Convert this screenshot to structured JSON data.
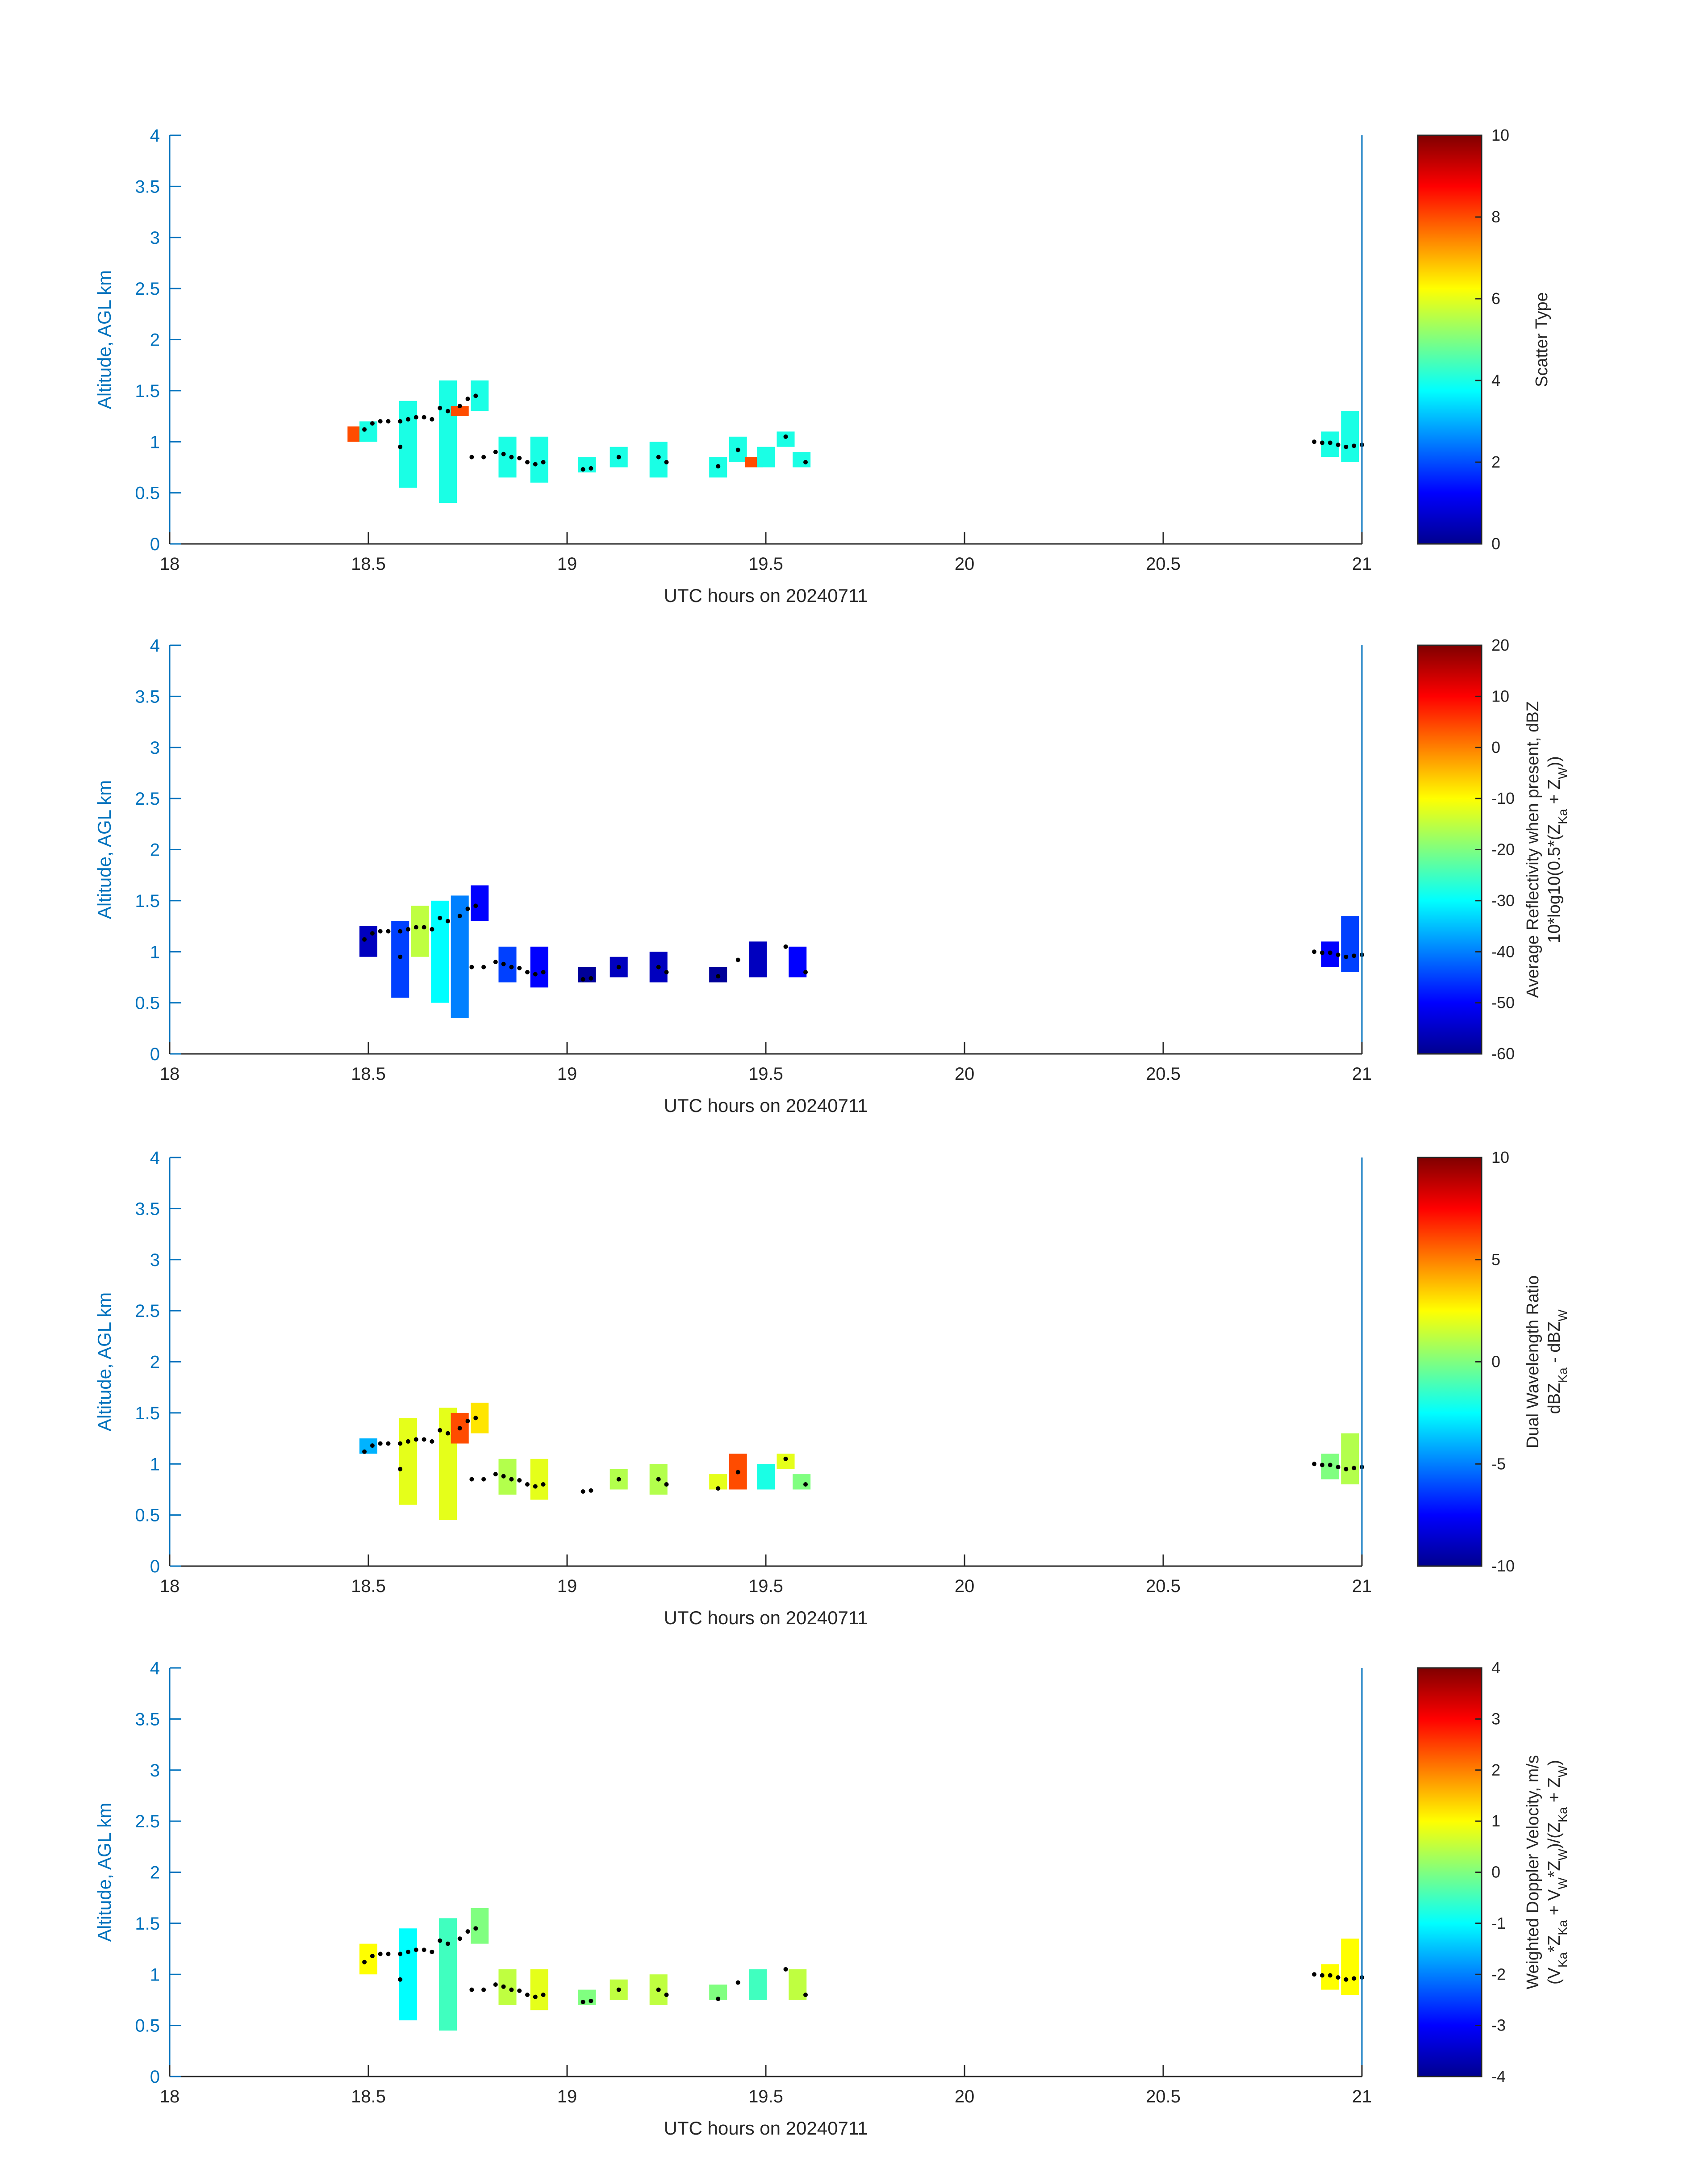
{
  "colors": {
    "axis_left": "#0072BD",
    "axis_text": "#262626",
    "cell_edge": "#000000",
    "jet": [
      "#00008F",
      "#0000FF",
      "#00FFFF",
      "#FFFF00",
      "#FF0000",
      "#800000"
    ]
  },
  "chart_data": [
    {
      "type": "heatmap",
      "title": "",
      "xlabel": "UTC hours on 20240711",
      "ylabel": "Altitude, AGL km",
      "xlim": [
        18,
        21
      ],
      "ylim": [
        0,
        4
      ],
      "xticks": [
        "18",
        "18.5",
        "19",
        "19.5",
        "20",
        "20.5",
        "21"
      ],
      "yticks": [
        "0",
        "0.5",
        "1",
        "1.5",
        "2",
        "2.5",
        "3",
        "3.5",
        "4"
      ],
      "colorbar": {
        "label": [
          "Scatter Type"
        ],
        "clim": [
          0,
          10
        ],
        "ticks": [
          "0",
          "2",
          "4",
          "6",
          "8",
          "10"
        ]
      },
      "grid": false,
      "cells": [
        {
          "x": 18.47,
          "y_bottom": 1.0,
          "y_top": 1.15,
          "value": 8
        },
        {
          "x": 18.5,
          "y_bottom": 1.0,
          "y_top": 1.2,
          "value": 4
        },
        {
          "x": 18.6,
          "y_bottom": 0.55,
          "y_top": 1.4,
          "value": 4
        },
        {
          "x": 18.7,
          "y_bottom": 0.4,
          "y_top": 1.6,
          "value": 4
        },
        {
          "x": 18.73,
          "y_bottom": 1.25,
          "y_top": 1.35,
          "value": 8
        },
        {
          "x": 18.78,
          "y_bottom": 1.3,
          "y_top": 1.6,
          "value": 4
        },
        {
          "x": 18.85,
          "y_bottom": 0.65,
          "y_top": 1.05,
          "value": 4
        },
        {
          "x": 18.93,
          "y_bottom": 0.6,
          "y_top": 1.05,
          "value": 4
        },
        {
          "x": 19.05,
          "y_bottom": 0.7,
          "y_top": 0.85,
          "value": 4
        },
        {
          "x": 19.13,
          "y_bottom": 0.75,
          "y_top": 0.95,
          "value": 4
        },
        {
          "x": 19.23,
          "y_bottom": 0.65,
          "y_top": 1.0,
          "value": 4
        },
        {
          "x": 19.38,
          "y_bottom": 0.65,
          "y_top": 0.85,
          "value": 4
        },
        {
          "x": 19.43,
          "y_bottom": 0.8,
          "y_top": 1.05,
          "value": 4
        },
        {
          "x": 19.47,
          "y_bottom": 0.75,
          "y_top": 0.85,
          "value": 8
        },
        {
          "x": 19.5,
          "y_bottom": 0.75,
          "y_top": 0.95,
          "value": 4
        },
        {
          "x": 19.55,
          "y_bottom": 0.95,
          "y_top": 1.1,
          "value": 4
        },
        {
          "x": 19.59,
          "y_bottom": 0.75,
          "y_top": 0.9,
          "value": 4
        },
        {
          "x": 20.92,
          "y_bottom": 0.85,
          "y_top": 1.1,
          "value": 4
        },
        {
          "x": 20.97,
          "y_bottom": 0.8,
          "y_top": 1.3,
          "value": 4
        }
      ]
    },
    {
      "type": "heatmap",
      "title": "",
      "xlabel": "UTC hours on 20240711",
      "ylabel": "Altitude, AGL km",
      "xlim": [
        18,
        21
      ],
      "ylim": [
        0,
        4
      ],
      "xticks": [
        "18",
        "18.5",
        "19",
        "19.5",
        "20",
        "20.5",
        "21"
      ],
      "yticks": [
        "0",
        "0.5",
        "1",
        "1.5",
        "2",
        "2.5",
        "3",
        "3.5",
        "4"
      ],
      "colorbar": {
        "label": [
          "Average Reflectivity when present, dBZ",
          "10*log10(0.5*(Z_Ka + Z_W))"
        ],
        "clim": [
          -60,
          20
        ],
        "ticks": [
          "-60",
          "-50",
          "-40",
          "-30",
          "-20",
          "-10",
          "0",
          "10",
          "20"
        ]
      },
      "grid": false,
      "cells": [
        {
          "x": 18.5,
          "y_bottom": 0.95,
          "y_top": 1.25,
          "value": -55
        },
        {
          "x": 18.58,
          "y_bottom": 0.55,
          "y_top": 1.3,
          "value": -45
        },
        {
          "x": 18.63,
          "y_bottom": 0.95,
          "y_top": 1.45,
          "value": -15
        },
        {
          "x": 18.68,
          "y_bottom": 0.5,
          "y_top": 1.5,
          "value": -30
        },
        {
          "x": 18.73,
          "y_bottom": 0.35,
          "y_top": 1.55,
          "value": -40
        },
        {
          "x": 18.78,
          "y_bottom": 1.3,
          "y_top": 1.65,
          "value": -50
        },
        {
          "x": 18.85,
          "y_bottom": 0.7,
          "y_top": 1.05,
          "value": -45
        },
        {
          "x": 18.93,
          "y_bottom": 0.65,
          "y_top": 1.05,
          "value": -50
        },
        {
          "x": 19.05,
          "y_bottom": 0.7,
          "y_top": 0.85,
          "value": -58
        },
        {
          "x": 19.13,
          "y_bottom": 0.75,
          "y_top": 0.95,
          "value": -55
        },
        {
          "x": 19.23,
          "y_bottom": 0.7,
          "y_top": 1.0,
          "value": -55
        },
        {
          "x": 19.38,
          "y_bottom": 0.7,
          "y_top": 0.85,
          "value": -58
        },
        {
          "x": 19.48,
          "y_bottom": 0.75,
          "y_top": 1.1,
          "value": -55
        },
        {
          "x": 19.58,
          "y_bottom": 0.75,
          "y_top": 1.05,
          "value": -50
        },
        {
          "x": 20.92,
          "y_bottom": 0.85,
          "y_top": 1.1,
          "value": -50
        },
        {
          "x": 20.97,
          "y_bottom": 0.8,
          "y_top": 1.35,
          "value": -45
        }
      ]
    },
    {
      "type": "heatmap",
      "title": "",
      "xlabel": "UTC hours on 20240711",
      "ylabel": "Altitude, AGL km",
      "xlim": [
        18,
        21
      ],
      "ylim": [
        0,
        4
      ],
      "xticks": [
        "18",
        "18.5",
        "19",
        "19.5",
        "20",
        "20.5",
        "21"
      ],
      "yticks": [
        "0",
        "0.5",
        "1",
        "1.5",
        "2",
        "2.5",
        "3",
        "3.5",
        "4"
      ],
      "colorbar": {
        "label": [
          "Dual Wavelength Ratio",
          "dBZ_Ka - dBZ_W"
        ],
        "clim": [
          -10,
          10
        ],
        "ticks": [
          "-10",
          "-5",
          "0",
          "5",
          "10"
        ]
      },
      "grid": false,
      "cells": [
        {
          "x": 18.5,
          "y_bottom": 1.1,
          "y_top": 1.25,
          "value": -4
        },
        {
          "x": 18.6,
          "y_bottom": 0.6,
          "y_top": 1.45,
          "value": 2
        },
        {
          "x": 18.7,
          "y_bottom": 0.45,
          "y_top": 1.55,
          "value": 2
        },
        {
          "x": 18.73,
          "y_bottom": 1.2,
          "y_top": 1.5,
          "value": 6
        },
        {
          "x": 18.78,
          "y_bottom": 1.3,
          "y_top": 1.6,
          "value": 3
        },
        {
          "x": 18.85,
          "y_bottom": 0.7,
          "y_top": 1.05,
          "value": 1
        },
        {
          "x": 18.93,
          "y_bottom": 0.65,
          "y_top": 1.05,
          "value": 2
        },
        {
          "x": 19.13,
          "y_bottom": 0.75,
          "y_top": 0.95,
          "value": 1
        },
        {
          "x": 19.23,
          "y_bottom": 0.7,
          "y_top": 1.0,
          "value": 1
        },
        {
          "x": 19.38,
          "y_bottom": 0.75,
          "y_top": 0.9,
          "value": 2
        },
        {
          "x": 19.43,
          "y_bottom": 0.75,
          "y_top": 1.1,
          "value": 6
        },
        {
          "x": 19.5,
          "y_bottom": 0.75,
          "y_top": 1.0,
          "value": -2
        },
        {
          "x": 19.55,
          "y_bottom": 0.95,
          "y_top": 1.1,
          "value": 2
        },
        {
          "x": 19.59,
          "y_bottom": 0.75,
          "y_top": 0.9,
          "value": 0
        },
        {
          "x": 20.92,
          "y_bottom": 0.85,
          "y_top": 1.1,
          "value": 0
        },
        {
          "x": 20.97,
          "y_bottom": 0.8,
          "y_top": 1.3,
          "value": 1
        }
      ]
    },
    {
      "type": "heatmap",
      "title": "",
      "xlabel": "UTC hours on 20240711",
      "ylabel": "Altitude, AGL km",
      "xlim": [
        18,
        21
      ],
      "ylim": [
        0,
        4
      ],
      "xticks": [
        "18",
        "18.5",
        "19",
        "19.5",
        "20",
        "20.5",
        "21"
      ],
      "yticks": [
        "0",
        "0.5",
        "1",
        "1.5",
        "2",
        "2.5",
        "3",
        "3.5",
        "4"
      ],
      "colorbar": {
        "label": [
          "Weighted Doppler Velocity, m/s",
          "(V_Ka*Z_Ka + V_W*Z_W)/(Z_Ka + Z_W)"
        ],
        "clim": [
          -4,
          4
        ],
        "ticks": [
          "-4",
          "-3",
          "-2",
          "-1",
          "0",
          "1",
          "2",
          "3",
          "4"
        ]
      },
      "grid": false,
      "cells": [
        {
          "x": 18.5,
          "y_bottom": 1.0,
          "y_top": 1.3,
          "value": 1
        },
        {
          "x": 18.6,
          "y_bottom": 0.55,
          "y_top": 1.45,
          "value": -1
        },
        {
          "x": 18.7,
          "y_bottom": 0.45,
          "y_top": 1.55,
          "value": -0.5
        },
        {
          "x": 18.78,
          "y_bottom": 1.3,
          "y_top": 1.65,
          "value": 0
        },
        {
          "x": 18.85,
          "y_bottom": 0.7,
          "y_top": 1.05,
          "value": 0.5
        },
        {
          "x": 18.93,
          "y_bottom": 0.65,
          "y_top": 1.05,
          "value": 0.8
        },
        {
          "x": 19.05,
          "y_bottom": 0.7,
          "y_top": 0.85,
          "value": 0
        },
        {
          "x": 19.13,
          "y_bottom": 0.75,
          "y_top": 0.95,
          "value": 0.5
        },
        {
          "x": 19.23,
          "y_bottom": 0.7,
          "y_top": 1.0,
          "value": 0.5
        },
        {
          "x": 19.38,
          "y_bottom": 0.75,
          "y_top": 0.9,
          "value": 0
        },
        {
          "x": 19.48,
          "y_bottom": 0.75,
          "y_top": 1.05,
          "value": -0.5
        },
        {
          "x": 19.58,
          "y_bottom": 0.75,
          "y_top": 1.05,
          "value": 0.5
        },
        {
          "x": 20.92,
          "y_bottom": 0.85,
          "y_top": 1.1,
          "value": 1
        },
        {
          "x": 20.97,
          "y_bottom": 0.8,
          "y_top": 1.35,
          "value": 1
        }
      ]
    }
  ],
  "overlay_points": [
    {
      "x": 18.49,
      "y": 1.12
    },
    {
      "x": 18.51,
      "y": 1.18
    },
    {
      "x": 18.53,
      "y": 1.2
    },
    {
      "x": 18.55,
      "y": 1.2
    },
    {
      "x": 18.58,
      "y": 1.2
    },
    {
      "x": 18.6,
      "y": 1.22
    },
    {
      "x": 18.62,
      "y": 1.24
    },
    {
      "x": 18.64,
      "y": 1.24
    },
    {
      "x": 18.66,
      "y": 1.22
    },
    {
      "x": 18.68,
      "y": 1.33
    },
    {
      "x": 18.7,
      "y": 1.3
    },
    {
      "x": 18.73,
      "y": 1.35
    },
    {
      "x": 18.75,
      "y": 1.42
    },
    {
      "x": 18.77,
      "y": 1.45
    },
    {
      "x": 18.58,
      "y": 0.95
    },
    {
      "x": 18.76,
      "y": 0.85
    },
    {
      "x": 18.79,
      "y": 0.85
    },
    {
      "x": 18.82,
      "y": 0.9
    },
    {
      "x": 18.84,
      "y": 0.88
    },
    {
      "x": 18.86,
      "y": 0.85
    },
    {
      "x": 18.88,
      "y": 0.84
    },
    {
      "x": 18.9,
      "y": 0.8
    },
    {
      "x": 18.92,
      "y": 0.78
    },
    {
      "x": 18.94,
      "y": 0.8
    },
    {
      "x": 19.04,
      "y": 0.73
    },
    {
      "x": 19.06,
      "y": 0.74
    },
    {
      "x": 19.13,
      "y": 0.85
    },
    {
      "x": 19.23,
      "y": 0.85
    },
    {
      "x": 19.25,
      "y": 0.8
    },
    {
      "x": 19.38,
      "y": 0.76
    },
    {
      "x": 19.43,
      "y": 0.92
    },
    {
      "x": 19.55,
      "y": 1.05
    },
    {
      "x": 19.6,
      "y": 0.8
    },
    {
      "x": 20.88,
      "y": 1.0
    },
    {
      "x": 20.9,
      "y": 0.99
    },
    {
      "x": 20.92,
      "y": 0.99
    },
    {
      "x": 20.94,
      "y": 0.97
    },
    {
      "x": 20.96,
      "y": 0.95
    },
    {
      "x": 20.98,
      "y": 0.96
    },
    {
      "x": 21.0,
      "y": 0.97
    }
  ]
}
